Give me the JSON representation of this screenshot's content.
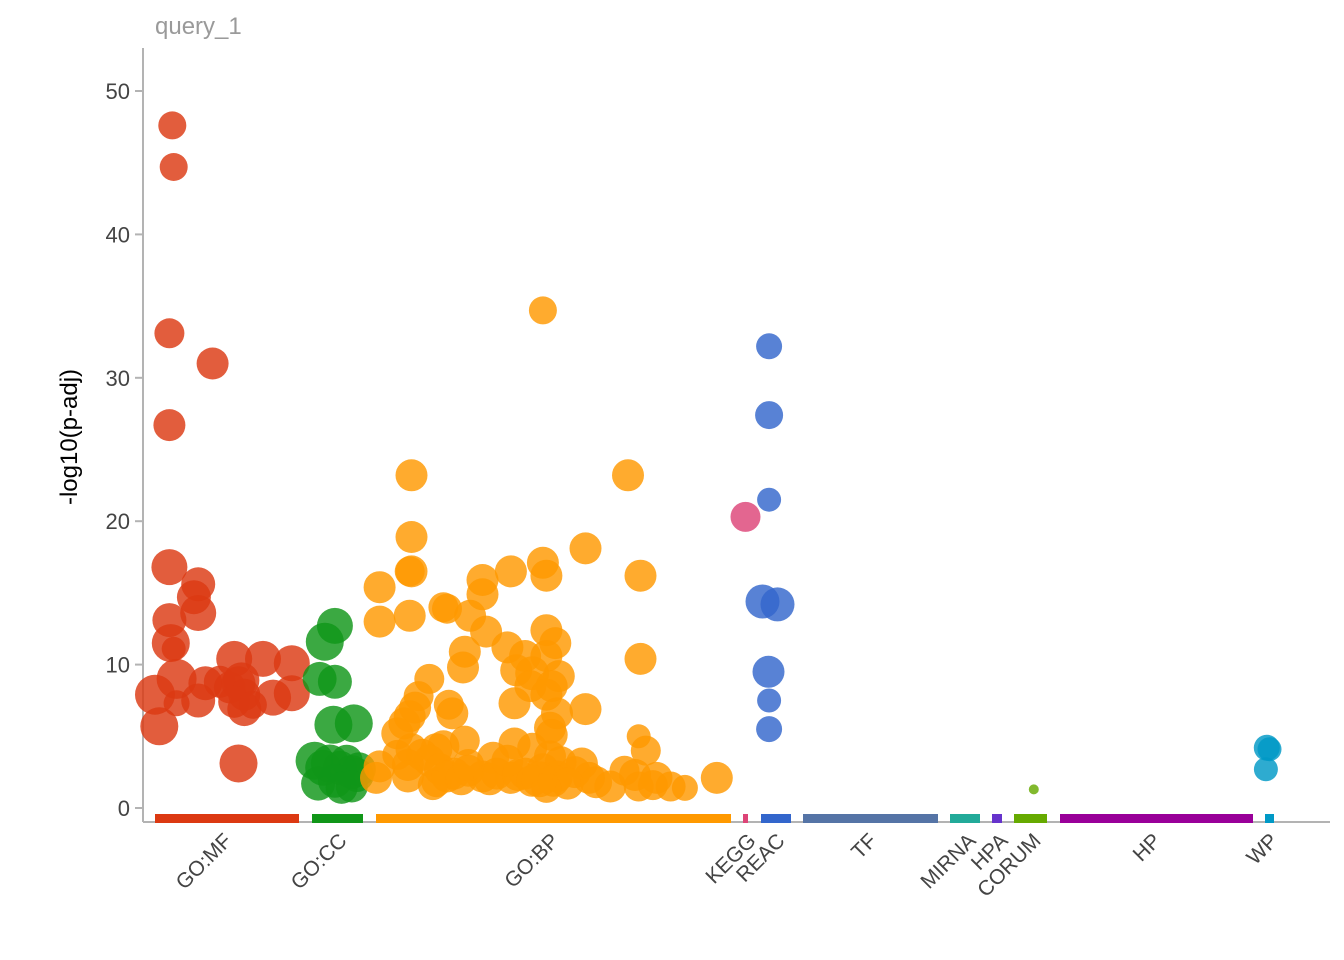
{
  "chart_data": {
    "type": "scatter",
    "title": "query_1",
    "xlabel": "",
    "ylabel": "-log10(p-adj)",
    "ylim": [
      0,
      53
    ],
    "yticks": [
      0,
      10,
      20,
      30,
      40,
      50
    ],
    "grid": false,
    "legend": "none",
    "sources": [
      {
        "name": "GO:MF",
        "color": "#dc3912"
      },
      {
        "name": "GO:CC",
        "color": "#109618"
      },
      {
        "name": "GO:BP",
        "color": "#ff9900"
      },
      {
        "name": "KEGG",
        "color": "#dd4477"
      },
      {
        "name": "REAC",
        "color": "#3366cc"
      },
      {
        "name": "TF",
        "color": "#5574a6"
      },
      {
        "name": "MIRNA",
        "color": "#22aa99"
      },
      {
        "name": "HPA",
        "color": "#6633cc"
      },
      {
        "name": "CORUM",
        "color": "#66aa00"
      },
      {
        "name": "HP",
        "color": "#990099"
      },
      {
        "name": "WP",
        "color": "#0099c6"
      }
    ],
    "series": [
      {
        "source": "GO:MF",
        "points": [
          [
            0.12,
            47.6,
            14
          ],
          [
            0.13,
            44.7,
            14
          ],
          [
            0.1,
            33.1,
            15
          ],
          [
            0.1,
            26.7,
            16
          ],
          [
            0.4,
            31.0,
            16
          ],
          [
            0.1,
            16.8,
            18
          ],
          [
            0.3,
            15.6,
            17
          ],
          [
            0.27,
            14.7,
            17
          ],
          [
            0.3,
            13.6,
            18
          ],
          [
            0.1,
            13.1,
            17
          ],
          [
            0.11,
            11.5,
            19
          ],
          [
            0.13,
            11.1,
            12
          ],
          [
            0.55,
            10.4,
            18
          ],
          [
            0.75,
            10.4,
            18
          ],
          [
            0.95,
            10.1,
            18
          ],
          [
            0.15,
            9.0,
            20
          ],
          [
            0.35,
            8.7,
            17
          ],
          [
            0.45,
            8.8,
            16
          ],
          [
            0.52,
            8.4,
            16
          ],
          [
            0.58,
            8.7,
            17
          ],
          [
            0.6,
            8.9,
            18
          ],
          [
            0.62,
            7.9,
            16
          ],
          [
            0.62,
            6.9,
            17
          ],
          [
            0.55,
            7.4,
            16
          ],
          [
            0.68,
            7.2,
            14
          ],
          [
            0.0,
            7.9,
            20
          ],
          [
            0.15,
            7.3,
            13
          ],
          [
            0.3,
            7.5,
            17
          ],
          [
            0.82,
            7.7,
            18
          ],
          [
            0.95,
            8.0,
            18
          ],
          [
            0.03,
            5.7,
            19
          ],
          [
            0.58,
            3.1,
            19
          ]
        ]
      },
      {
        "source": "GO:CC",
        "points": [
          [
            0.45,
            12.7,
            18
          ],
          [
            0.25,
            11.6,
            19
          ],
          [
            0.15,
            9.0,
            17
          ],
          [
            0.45,
            8.8,
            17
          ],
          [
            0.42,
            5.8,
            19
          ],
          [
            0.82,
            5.9,
            19
          ],
          [
            0.05,
            3.3,
            19
          ],
          [
            0.22,
            2.8,
            18
          ],
          [
            0.35,
            3.1,
            19
          ],
          [
            0.55,
            2.8,
            17
          ],
          [
            0.68,
            3.3,
            16
          ],
          [
            0.78,
            2.5,
            17
          ],
          [
            0.88,
            2.3,
            17
          ],
          [
            0.92,
            2.7,
            17
          ],
          [
            0.12,
            1.7,
            17
          ],
          [
            0.45,
            1.9,
            17
          ],
          [
            0.58,
            1.4,
            16
          ],
          [
            0.78,
            1.5,
            16
          ]
        ]
      },
      {
        "source": "GO:BP",
        "points": [
          [
            0.47,
            34.7,
            14
          ],
          [
            0.1,
            23.2,
            16
          ],
          [
            0.71,
            23.2,
            16
          ],
          [
            0.1,
            18.9,
            16
          ],
          [
            0.59,
            18.1,
            16
          ],
          [
            0.47,
            17.1,
            16
          ],
          [
            0.1,
            16.5,
            16
          ],
          [
            0.095,
            16.5,
            15
          ],
          [
            0.38,
            16.5,
            16
          ],
          [
            0.48,
            16.2,
            16
          ],
          [
            0.745,
            16.2,
            16
          ],
          [
            0.3,
            15.9,
            16
          ],
          [
            0.01,
            15.4,
            16
          ],
          [
            0.3,
            14.9,
            16
          ],
          [
            0.19,
            14.0,
            15
          ],
          [
            0.2,
            13.9,
            15
          ],
          [
            0.265,
            13.4,
            16
          ],
          [
            0.095,
            13.4,
            16
          ],
          [
            0.01,
            13.0,
            16
          ],
          [
            0.31,
            12.3,
            16
          ],
          [
            0.48,
            12.4,
            16
          ],
          [
            0.505,
            11.5,
            16
          ],
          [
            0.37,
            11.2,
            16
          ],
          [
            0.25,
            10.9,
            16
          ],
          [
            0.42,
            10.6,
            16
          ],
          [
            0.48,
            10.6,
            16
          ],
          [
            0.745,
            10.4,
            16
          ],
          [
            0.245,
            9.8,
            16
          ],
          [
            0.395,
            9.6,
            16
          ],
          [
            0.44,
            9.4,
            17
          ],
          [
            0.515,
            9.2,
            16
          ],
          [
            0.15,
            9.0,
            15
          ],
          [
            0.435,
            8.5,
            16
          ],
          [
            0.495,
            8.5,
            16
          ],
          [
            0.48,
            7.9,
            16
          ],
          [
            0.12,
            7.8,
            15
          ],
          [
            0.11,
            7.0,
            16
          ],
          [
            0.205,
            7.2,
            15
          ],
          [
            0.39,
            7.3,
            16
          ],
          [
            0.59,
            6.9,
            16
          ],
          [
            0.095,
            6.4,
            16
          ],
          [
            0.51,
            6.6,
            16
          ],
          [
            0.215,
            6.6,
            16
          ],
          [
            0.08,
            5.9,
            16
          ],
          [
            0.49,
            5.6,
            16
          ],
          [
            0.495,
            5.1,
            16
          ],
          [
            0.74,
            5.0,
            12
          ],
          [
            0.39,
            4.5,
            16
          ],
          [
            0.44,
            4.2,
            15
          ],
          [
            0.1,
            4.1,
            16
          ],
          [
            0.17,
            4.1,
            16
          ],
          [
            0.19,
            4.3,
            16
          ],
          [
            0.25,
            4.7,
            15
          ],
          [
            0.06,
            3.7,
            15
          ],
          [
            0.13,
            3.7,
            16
          ],
          [
            0.15,
            3.3,
            16
          ],
          [
            0.49,
            3.6,
            16
          ],
          [
            0.52,
            3.2,
            16
          ],
          [
            0.58,
            3.1,
            16
          ],
          [
            0.33,
            3.5,
            16
          ],
          [
            0.76,
            4.0,
            15
          ],
          [
            0.01,
            2.9,
            16
          ],
          [
            0.09,
            3.0,
            16
          ],
          [
            0.18,
            2.7,
            16
          ],
          [
            0.22,
            2.4,
            16
          ],
          [
            0.26,
            2.6,
            16
          ],
          [
            0.3,
            2.2,
            16
          ],
          [
            0.34,
            2.4,
            16
          ],
          [
            0.38,
            2.1,
            16
          ],
          [
            0.42,
            2.4,
            16
          ],
          [
            0.47,
            2.7,
            16
          ],
          [
            0.51,
            2.2,
            16
          ],
          [
            0.56,
            2.5,
            16
          ],
          [
            0.6,
            2.1,
            16
          ],
          [
            0.7,
            2.6,
            15
          ],
          [
            0.73,
            2.3,
            16
          ],
          [
            0.79,
            2.1,
            16
          ],
          [
            0.96,
            2.1,
            16
          ],
          [
            0.0,
            2.1,
            16
          ],
          [
            0.09,
            2.2,
            16
          ],
          [
            0.17,
            1.8,
            15
          ],
          [
            0.2,
            2.2,
            16
          ],
          [
            0.24,
            2.0,
            16
          ],
          [
            0.32,
            2.0,
            16
          ],
          [
            0.4,
            2.3,
            16
          ],
          [
            0.44,
            1.9,
            16
          ],
          [
            0.5,
            1.9,
            16
          ],
          [
            0.54,
            1.7,
            16
          ],
          [
            0.62,
            1.8,
            16
          ],
          [
            0.66,
            1.5,
            16
          ],
          [
            0.74,
            1.5,
            15
          ],
          [
            0.78,
            1.6,
            15
          ],
          [
            0.83,
            1.5,
            15
          ],
          [
            0.87,
            1.4,
            13
          ],
          [
            0.46,
            2.0,
            18
          ],
          [
            0.48,
            1.4,
            15
          ],
          [
            0.16,
            1.6,
            15
          ],
          [
            0.37,
            3.3,
            16
          ],
          [
            0.26,
            3.0,
            16
          ],
          [
            0.06,
            5.2,
            16
          ]
        ]
      },
      {
        "source": "KEGG",
        "points": [
          [
            0.5,
            20.3,
            15
          ]
        ]
      },
      {
        "source": "REAC",
        "points": [
          [
            0.27,
            32.2,
            13
          ],
          [
            0.27,
            27.4,
            14
          ],
          [
            0.27,
            21.5,
            12
          ],
          [
            0.05,
            14.4,
            17
          ],
          [
            0.55,
            14.2,
            17
          ],
          [
            0.25,
            9.5,
            16
          ],
          [
            0.27,
            7.5,
            12
          ],
          [
            0.27,
            5.5,
            13
          ]
        ]
      },
      {
        "source": "CORUM",
        "points": [
          [
            0.6,
            1.3,
            5
          ]
        ]
      },
      {
        "source": "WP",
        "points": [
          [
            0.2,
            4.2,
            13
          ],
          [
            0.5,
            4.1,
            12
          ],
          [
            0.1,
            2.7,
            12
          ]
        ]
      }
    ]
  }
}
